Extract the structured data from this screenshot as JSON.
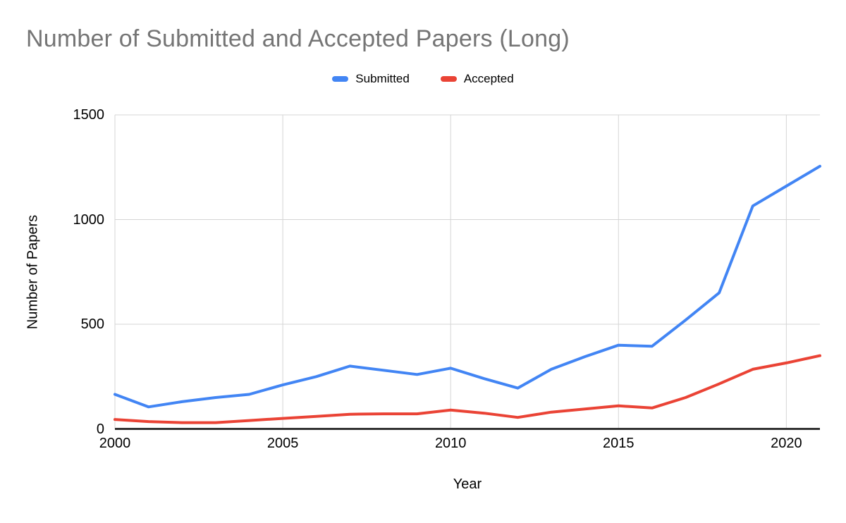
{
  "styles": {
    "background": "#ffffff",
    "title_color": "#757575",
    "grid_color": "#d5d5d5",
    "axis_line_color": "#333333",
    "text_color": "#000000",
    "submitted_color": "#4285f4",
    "accepted_color": "#ea4335"
  },
  "chart_data": {
    "type": "line",
    "title": "Number of Submitted and Accepted Papers (Long)",
    "xlabel": "Year",
    "ylabel": "Number of Papers",
    "x": [
      2000,
      2001,
      2002,
      2003,
      2004,
      2005,
      2006,
      2007,
      2008,
      2009,
      2010,
      2011,
      2012,
      2013,
      2014,
      2015,
      2016,
      2017,
      2018,
      2019,
      2020,
      2021
    ],
    "series": [
      {
        "name": "Submitted",
        "color": "#4285f4",
        "values": [
          165,
          105,
          130,
          150,
          165,
          210,
          250,
          300,
          280,
          260,
          290,
          240,
          195,
          285,
          345,
          400,
          395,
          520,
          650,
          1065,
          1160,
          1255
        ]
      },
      {
        "name": "Accepted",
        "color": "#ea4335",
        "values": [
          45,
          35,
          30,
          30,
          40,
          50,
          60,
          70,
          72,
          72,
          90,
          75,
          55,
          80,
          95,
          110,
          100,
          150,
          215,
          285,
          315,
          350
        ]
      }
    ],
    "ylim": [
      0,
      1500
    ],
    "y_ticks": [
      0,
      500,
      1000,
      1500
    ],
    "x_ticks": [
      2000,
      2005,
      2010,
      2015,
      2020
    ],
    "grid": true,
    "legend_position": "top-center",
    "line_width": 4
  }
}
